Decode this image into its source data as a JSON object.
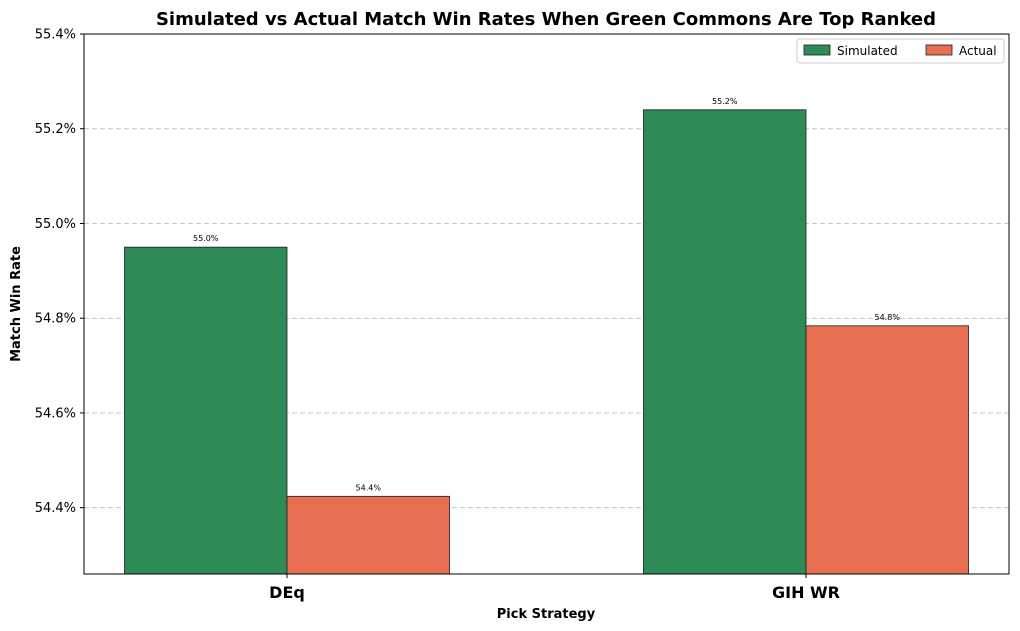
{
  "chart_data": {
    "type": "bar",
    "title": "Simulated vs Actual Match Win Rates When Green Commons Are Top Ranked",
    "xlabel": "Pick Strategy",
    "ylabel": "Match Win Rate",
    "categories": [
      "DEq",
      "GIH WR"
    ],
    "series": [
      {
        "name": "Simulated",
        "color": "#2e8b57",
        "values": [
          54.95,
          55.24
        ],
        "labels": [
          "55.0%",
          "55.2%"
        ]
      },
      {
        "name": "Actual",
        "color": "#e76f51",
        "values": [
          54.424,
          54.784
        ],
        "labels": [
          "54.4%",
          "54.8%"
        ]
      }
    ],
    "ylim": [
      54.26,
      55.4
    ],
    "yticks": [
      {
        "value": 54.4,
        "label": "54.4%"
      },
      {
        "value": 54.6,
        "label": "54.6%"
      },
      {
        "value": 54.8,
        "label": "54.8%"
      },
      {
        "value": 55.0,
        "label": "55.0%"
      },
      {
        "value": 55.2,
        "label": "55.2%"
      },
      {
        "value": 55.4,
        "label": "55.4%"
      }
    ],
    "grid": "y-dashed",
    "legend_position": "top-right"
  }
}
